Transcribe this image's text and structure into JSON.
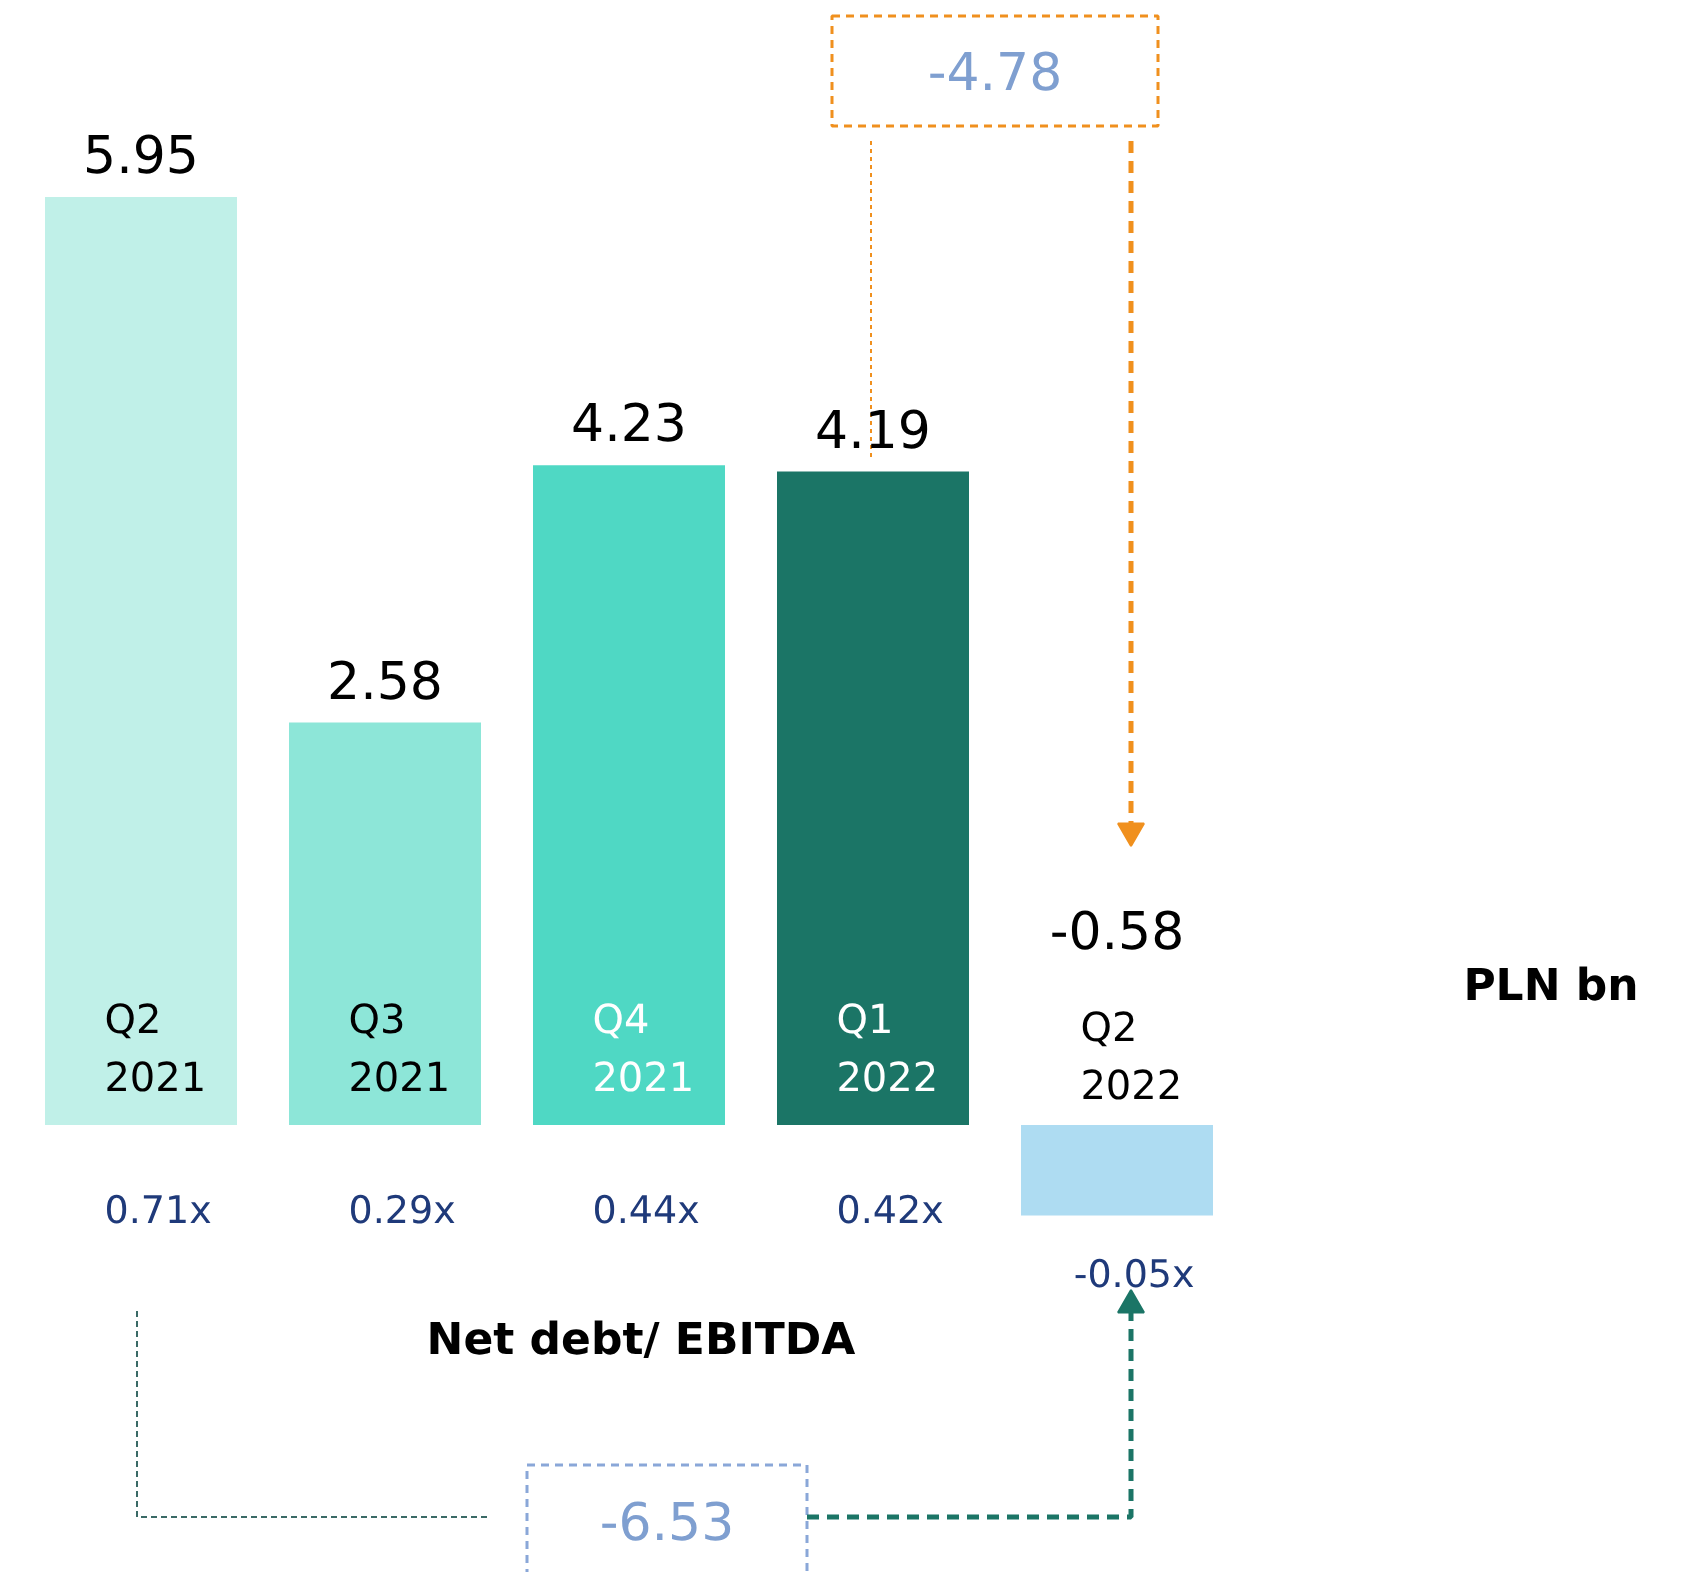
{
  "chart_data": {
    "type": "bar",
    "categories": [
      "Q2 2021",
      "Q3 2021",
      "Q4 2021",
      "Q1 2022",
      "Q2 2022"
    ],
    "values": [
      5.95,
      2.58,
      4.23,
      4.19,
      -0.58
    ],
    "colors": [
      "#c0f0e8",
      "#8de6d8",
      "#4fd8c4",
      "#1b7566",
      "#aedcf2"
    ],
    "data_labels": true,
    "annotations": [
      "0.71x",
      "0.29x",
      "0.44x",
      "0.42x",
      "-0.05x",
      "Net debt/ EBITDA",
      "PLN bn",
      "-4.78",
      "-6.53"
    ]
  }
}
